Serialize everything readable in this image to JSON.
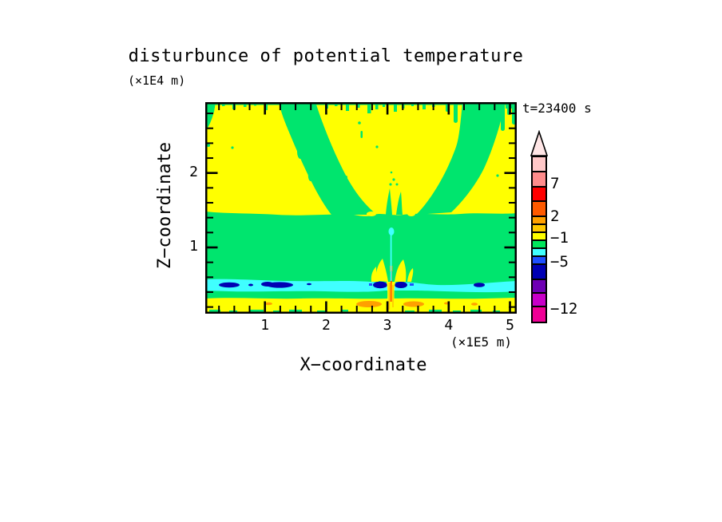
{
  "figure": {
    "title": "disturbunce of potential temperature",
    "z_unit_label": "(×1E4 m)",
    "x_unit_label": "(×1E5 m)",
    "time_label": "t=23400 s"
  },
  "axes": {
    "x": {
      "label": "X−coordinate",
      "ticks": [
        {
          "label": "1",
          "value": 1
        },
        {
          "label": "2",
          "value": 2
        },
        {
          "label": "3",
          "value": 3
        },
        {
          "label": "4",
          "value": 4
        },
        {
          "label": "5",
          "value": 5
        }
      ]
    },
    "z": {
      "label": "Z−coordinate",
      "ticks": [
        {
          "label": "1",
          "value": 1
        },
        {
          "label": "2",
          "value": 2
        }
      ]
    }
  },
  "colorbar": {
    "arrow_color": "#FFE6E6",
    "segments": [
      {
        "color": "#FFC8C8",
        "height": 19
      },
      {
        "color": "#FF8C8C",
        "height": 19
      },
      {
        "color": "#FF0000",
        "height": 18
      },
      {
        "color": "#FF5A00",
        "height": 19
      },
      {
        "color": "#FFA000",
        "height": 10
      },
      {
        "color": "#FFC800",
        "height": 10
      },
      {
        "color": "#FFFF00",
        "height": 10
      },
      {
        "color": "#00E65C",
        "height": 10
      },
      {
        "color": "#40FFFF",
        "height": 10
      },
      {
        "color": "#1E50FF",
        "height": 10
      },
      {
        "color": "#0000B4",
        "height": 19
      },
      {
        "color": "#6E00B4",
        "height": 17
      },
      {
        "color": "#C800C8",
        "height": 17
      },
      {
        "color": "#F00096",
        "height": 18
      }
    ],
    "ticks": [
      {
        "label": "7",
        "offset": 36
      },
      {
        "label": "2",
        "offset": 77
      },
      {
        "label": "−1",
        "offset": 104
      },
      {
        "label": "−5",
        "offset": 134
      },
      {
        "label": "−12",
        "offset": 193
      }
    ]
  },
  "colors": {
    "yellow": "#FFFF00",
    "green": "#00E56E",
    "cyan": "#40FFFF",
    "navy": "#0000B4",
    "blue": "#1E50FF",
    "orange": "#FFA000",
    "gold": "#FFC800",
    "red_orange": "#FF5A00",
    "frame": "#000000"
  },
  "chart_data": {
    "type": "heatmap",
    "subtype": "filled-contour",
    "title": "disturbunce of potential temperature",
    "xlabel": "X−coordinate",
    "ylabel": "Z−coordinate",
    "x_unit": "×1E5 m",
    "z_unit": "×1E4 m",
    "time_annotation": "t=23400 s",
    "x_range": [
      0,
      5.15
    ],
    "z_range": [
      0.1,
      2.95
    ],
    "x_ticks": [
      1,
      2,
      3,
      4,
      5
    ],
    "x_minor_tick_step": 0.25,
    "z_ticks": [
      1,
      2
    ],
    "z_minor_tick_step": 0.2,
    "grid": false,
    "legend_position": "right-colorbar-vertical-with-top-arrow",
    "colorbar_labeled_levels": [
      7,
      2,
      -1,
      -5,
      -12
    ],
    "colorbar_colors_top_to_bottom": [
      "#FFC8C8",
      "#FF8C8C",
      "#FF0000",
      "#FF5A00",
      "#FFA000",
      "#FFC800",
      "#FFFF00",
      "#00E65C",
      "#40FFFF",
      "#1E50FF",
      "#0000B4",
      "#6E00B4",
      "#C800C8",
      "#F00096"
    ],
    "features": [
      {
        "region": "upper layer z≈1.45–2.95",
        "color": "yellow (≈ −1 to 0)",
        "structure": "background with two green V-shaped wave arms radiating upward/outward from x≈3.0, plus green feathered fingers along the top edge and top-right corner"
      },
      {
        "region": "middle layer z≈0.55–1.45",
        "color": "green (≈ −2 to −1)",
        "structure": "uniform horizontal band with wavy upper boundary"
      },
      {
        "region": "cold band z≈0.40–0.54",
        "color": "cyan (≈ −3 to −2)",
        "structure": "thin band spanning all x with navy minima (≈ −5 to −3) near x≈0.4, 1.2, 2.9, 3.2, 4.5"
      },
      {
        "region": "surface layer z≈0.13–0.38",
        "color": "yellow",
        "structure": "band with orange warm anomalies (≈ +1 to +2) near x≈2.7 and x≈3.4 and green flecks at the bottom boundary"
      },
      {
        "region": "central plume at x≈3.0",
        "color": "mixed",
        "structure": "narrow cyan filament rising to z≈1.2, yellow flame-like plumes and an orange/red hot core (up to ≈ +7) punching through the cyan band near the surface"
      }
    ]
  }
}
